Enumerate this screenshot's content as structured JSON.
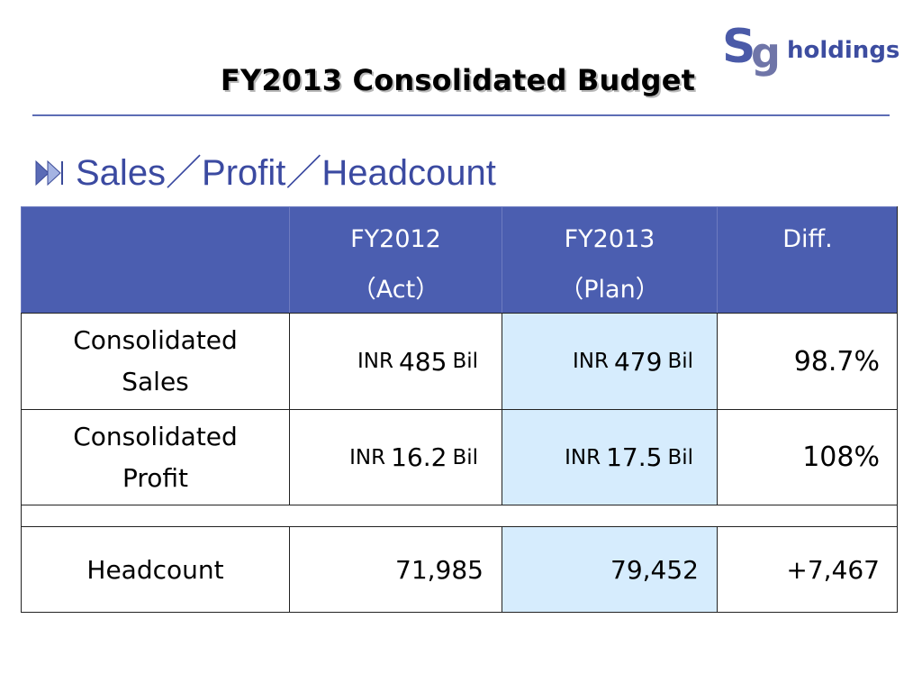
{
  "header": {
    "title": "FY2013 Consolidated Budget",
    "logo": {
      "s": "S",
      "g": "g",
      "word": "holdings"
    }
  },
  "section": {
    "bullet_icon": "double-chevron-icon",
    "title": "Sales／Profit／Headcount"
  },
  "table": {
    "columns": [
      {
        "line1": "",
        "line2": ""
      },
      {
        "line1": "FY2012",
        "line2": "（Act）"
      },
      {
        "line1": "FY2013",
        "line2": "（Plan）"
      },
      {
        "line1": "Diff.",
        "line2": ""
      }
    ],
    "rows": [
      {
        "label_line1": "Consolidated",
        "label_line2": "Sales",
        "fy2012": {
          "prefix": "INR",
          "value": "485",
          "suffix": "Bil"
        },
        "fy2013": {
          "prefix": "INR",
          "value": "479",
          "suffix": "Bil"
        },
        "diff": "98.7%"
      },
      {
        "label_line1": "Consolidated",
        "label_line2": "Profit",
        "fy2012": {
          "prefix": "INR",
          "value": "16.2",
          "suffix": "Bil"
        },
        "fy2013": {
          "prefix": "INR",
          "value": "17.5",
          "suffix": "Bil"
        },
        "diff": "108%"
      },
      {
        "label_line1": "Headcount",
        "fy2012": {
          "value": "71,985"
        },
        "fy2013": {
          "value": "79,452"
        },
        "diff": "+7,467"
      }
    ]
  },
  "colors": {
    "header_fill": "#4b5eb0",
    "plan_column_fill": "#d6ecfd",
    "accent_text": "#3b4aa1"
  }
}
